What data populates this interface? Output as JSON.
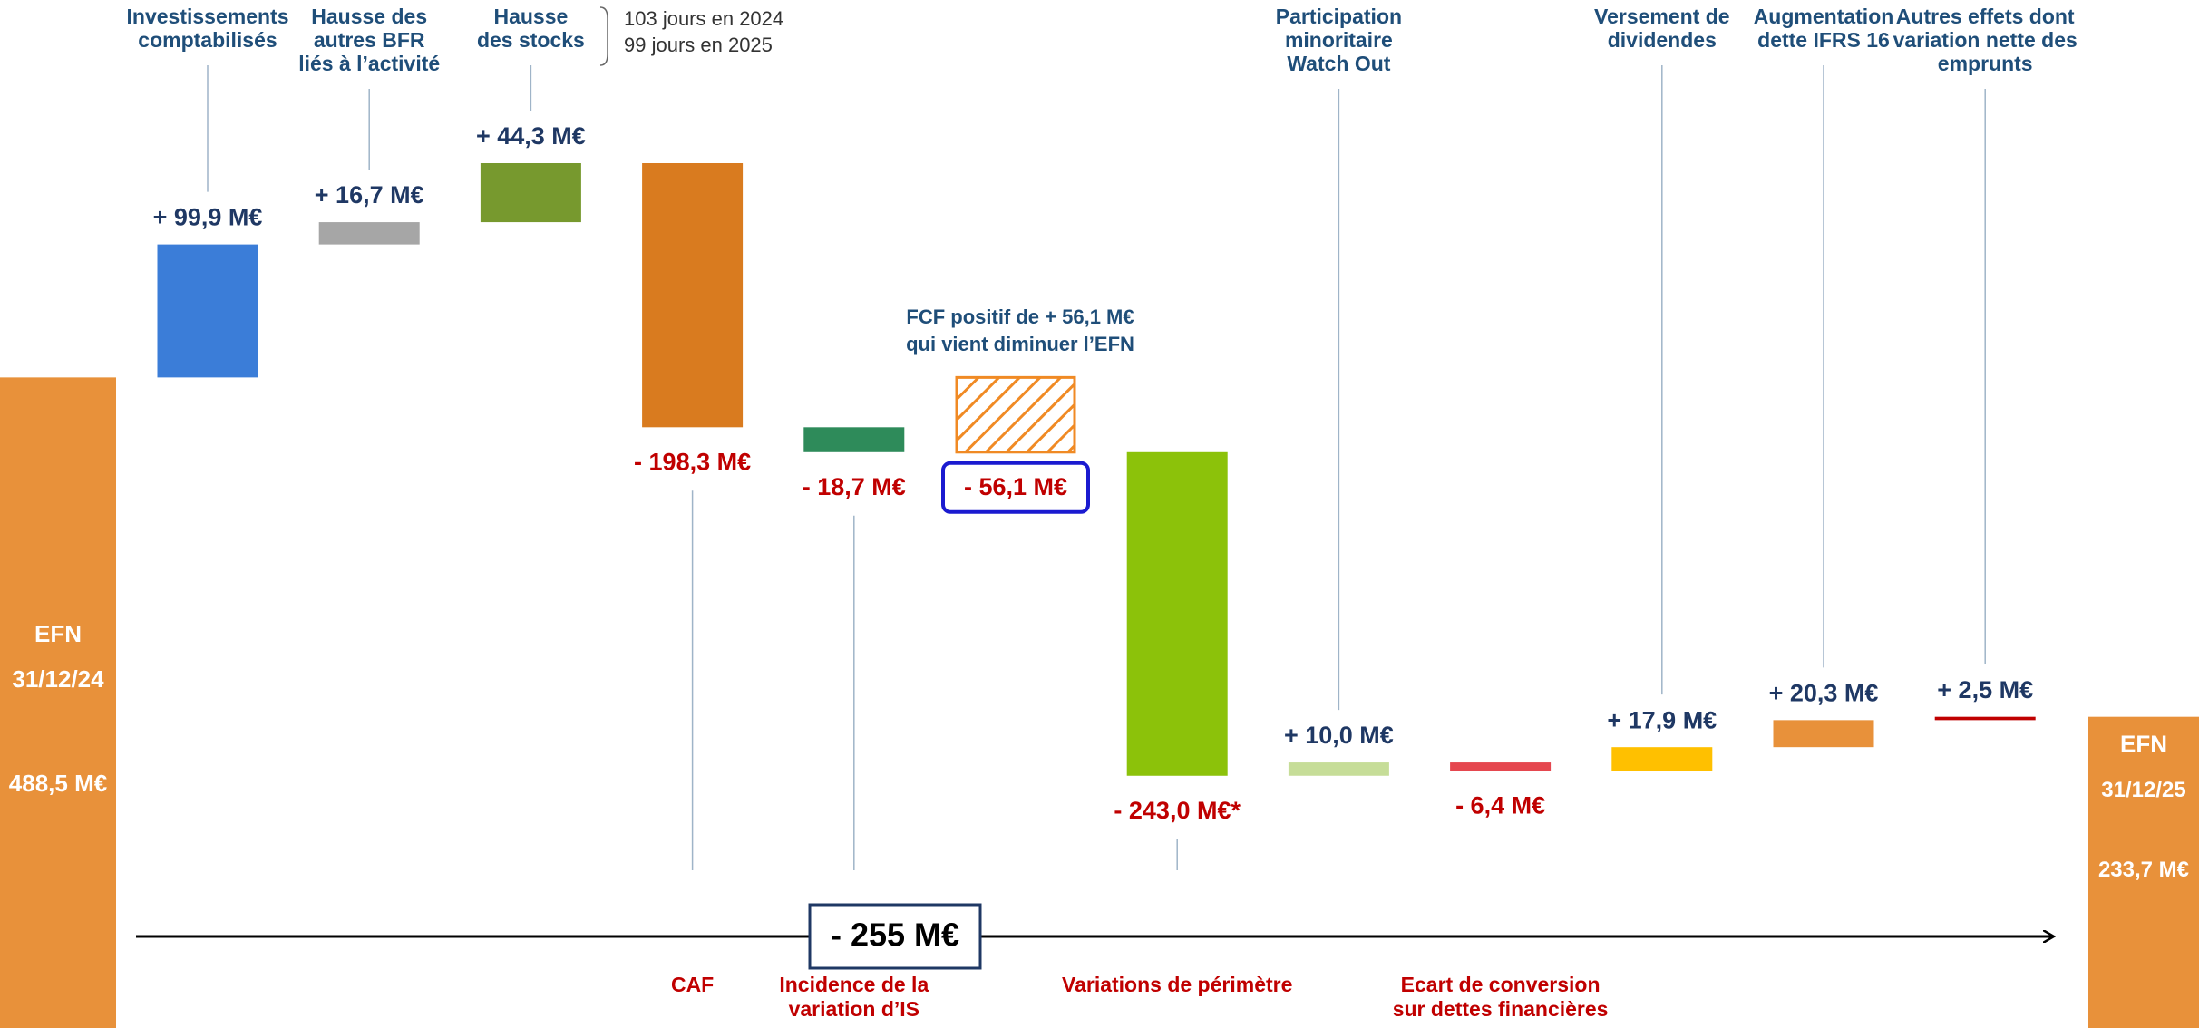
{
  "chart_data": {
    "type": "waterfall",
    "start": {
      "label": "EFN",
      "date": "31/12/24",
      "value": 488.5,
      "value_label": "488,5 M€",
      "color": "#e8913a"
    },
    "end": {
      "label": "EFN",
      "date": "31/12/25",
      "value": 233.7,
      "value_label": "233,7 M€",
      "color": "#e8913a"
    },
    "steps": [
      {
        "label": [
          "Investissements",
          "comptabilisés"
        ],
        "value": 99.9,
        "value_label": "+ 99,9 M€",
        "color": "#3b7dd8"
      },
      {
        "label": [
          "Hausse des",
          "autres BFR",
          "liés à l’activité"
        ],
        "value": 16.7,
        "value_label": "+ 16,7 M€",
        "color": "#a6a6a6"
      },
      {
        "label": [
          "Hausse",
          "des stocks"
        ],
        "value": 44.3,
        "value_label": "+ 44,3 M€",
        "color": "#77992e"
      },
      {
        "label": [
          "CAF"
        ],
        "value": -198.3,
        "value_label": "- 198,3 M€",
        "color": "#d97b1f"
      },
      {
        "label": [
          "Incidence de la",
          "variation d’IS"
        ],
        "value": -18.7,
        "value_label": "- 18,7 M€",
        "color": "#2e8b5a"
      },
      {
        "label": null,
        "value": -56.1,
        "value_label": "- 56,1 M€",
        "color": "#f08a24",
        "subtotal": true
      },
      {
        "label": [
          "Variations de périmètre"
        ],
        "value": -243.0,
        "value_label": "- 243,0 M€*",
        "color": "#8cc20a"
      },
      {
        "label": [
          "Participation",
          "minoritaire",
          "Watch Out"
        ],
        "value": 10.0,
        "value_label": "+ 10,0 M€",
        "color": "#c6dd98"
      },
      {
        "label": [
          "Ecart de conversion",
          "sur dettes financières"
        ],
        "value": -6.4,
        "value_label": "- 6,4 M€",
        "color": "#e5474f"
      },
      {
        "label": [
          "Versement de",
          "dividendes"
        ],
        "value": 17.9,
        "value_label": "+ 17,9 M€",
        "color": "#ffc000"
      },
      {
        "label": [
          "Augmentation",
          "dette IFRS 16"
        ],
        "value": 20.3,
        "value_label": "+ 20,3 M€",
        "color": "#e8913a"
      },
      {
        "label": [
          "Autres effets dont",
          "variation nette des",
          "emprunts"
        ],
        "value": 2.5,
        "value_label": "+ 2,5 M€",
        "color": "#c00000"
      }
    ],
    "annotations": {
      "stocks_days": [
        "103 jours en 2024",
        "99 jours en 2025"
      ],
      "fcf": [
        "FCF positif de + 56,1 M€",
        "qui vient diminuer l’EFN"
      ],
      "total": "- 255 M€"
    }
  }
}
